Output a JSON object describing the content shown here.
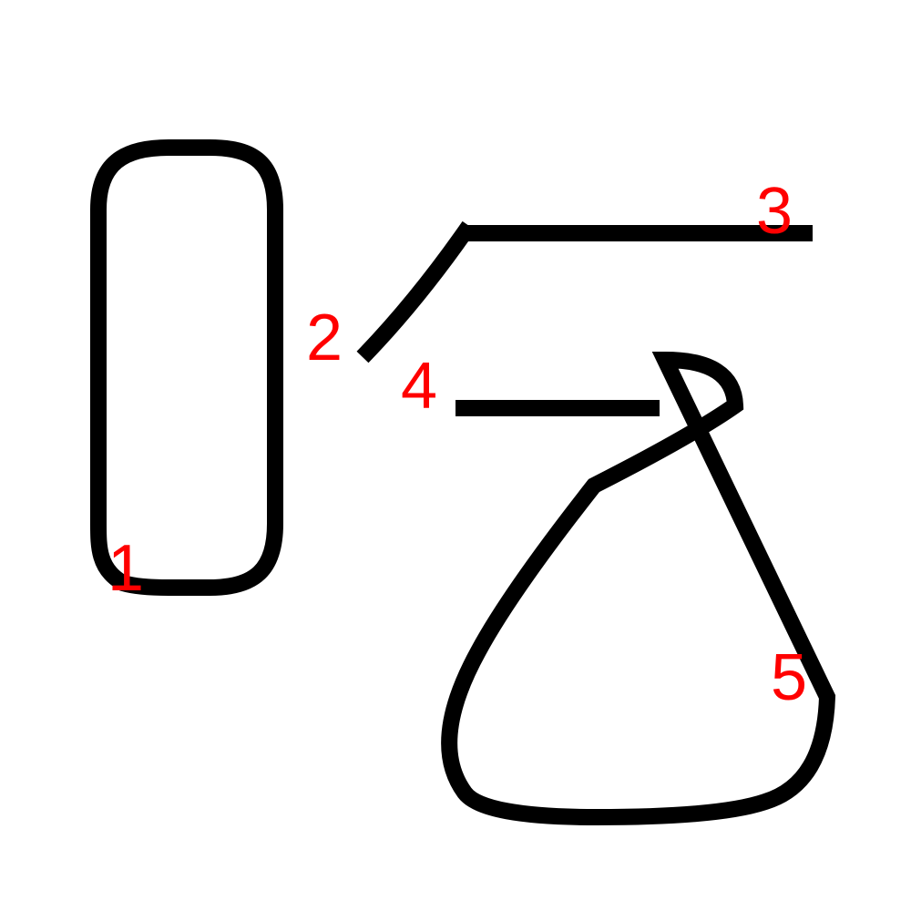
{
  "colors": {
    "background": "#ffffff",
    "stroke": "#000000",
    "label": "#ff0000"
  },
  "strokes": [
    {
      "id": "stroke-1",
      "label": "1"
    },
    {
      "id": "stroke-2",
      "label": "2"
    },
    {
      "id": "stroke-3",
      "label": "3"
    },
    {
      "id": "stroke-4",
      "label": "4"
    },
    {
      "id": "stroke-5",
      "label": "5"
    }
  ]
}
